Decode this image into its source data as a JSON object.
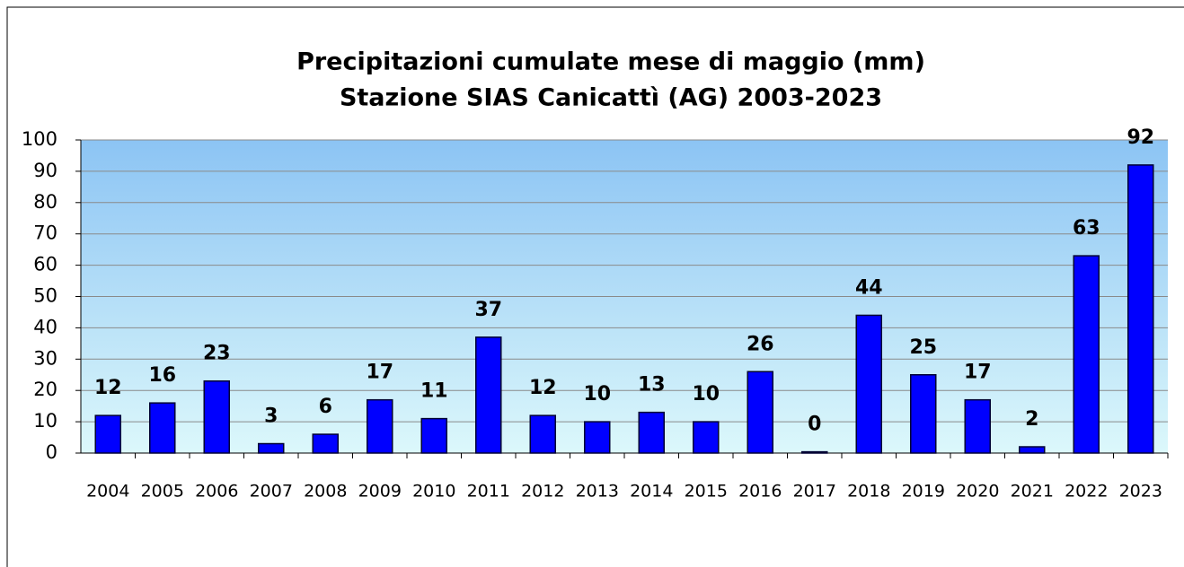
{
  "chart_data": {
    "type": "bar",
    "title": [
      "Precipitazioni cumulate mese di maggio (mm)",
      "Stazione SIAS Canicattì (AG) 2003-2023"
    ],
    "categories": [
      "2004",
      "2005",
      "2006",
      "2007",
      "2008",
      "2009",
      "2010",
      "2011",
      "2012",
      "2013",
      "2014",
      "2015",
      "2016",
      "2017",
      "2018",
      "2019",
      "2020",
      "2021",
      "2022",
      "2023"
    ],
    "values": [
      12,
      16,
      23,
      3,
      6,
      17,
      11,
      37,
      12,
      10,
      13,
      10,
      26,
      0.4,
      44,
      25,
      17,
      2,
      63,
      92
    ],
    "value_labels": [
      "12",
      "16",
      "23",
      "3",
      "6",
      "17",
      "11",
      "37",
      "12",
      "10",
      "13",
      "10",
      "26",
      "0",
      "44",
      "25",
      "17",
      "2",
      "63",
      "92"
    ],
    "color": "#0000ff",
    "ylim": [
      0,
      100
    ],
    "yticks": [
      0,
      10,
      20,
      30,
      40,
      50,
      60,
      70,
      80,
      90,
      100
    ],
    "grid": true
  }
}
